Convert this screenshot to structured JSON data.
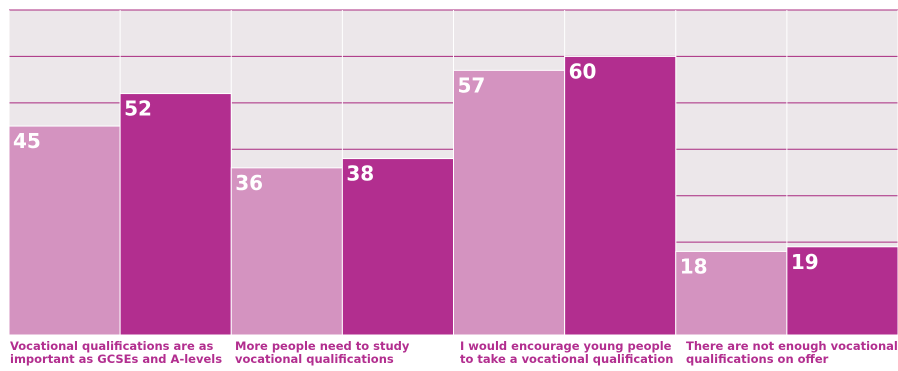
{
  "chart_data": {
    "type": "bar",
    "categories": [
      "Vocational qualifications are as important as GCSEs and A-levels",
      "More people need to study vocational qualifications",
      "I would encourage young people to take a vocational qualification",
      "There are not enough vocational qualifications on offer"
    ],
    "category_lines": [
      [
        "Vocational qualifications are as",
        "important as GCSEs and A-levels"
      ],
      [
        "More people need to study",
        "vocational qualifications"
      ],
      [
        "I would encourage young people",
        "to take a vocational qualification"
      ],
      [
        "There are not enough vocational",
        "qualifications on offer"
      ]
    ],
    "series": [
      {
        "values": [
          45,
          36,
          57,
          18
        ]
      },
      {
        "values": [
          52,
          38,
          60,
          19
        ]
      }
    ],
    "ylim": [
      0,
      70
    ],
    "grid": true,
    "legend": "none"
  },
  "colors": {
    "background": "#ece7ea",
    "grid": "#a8287f",
    "series_light": "#d493c0",
    "series_dark": "#b22e8f",
    "bar_label": "#ffffff",
    "category_label": "#b22e8f"
  }
}
